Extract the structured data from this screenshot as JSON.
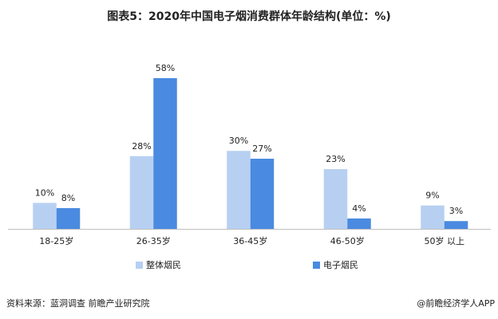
{
  "chart_data": {
    "type": "bar",
    "title": "图表5：2020年中国电子烟消费群体年龄结构(单位：%)",
    "categories": [
      "18-25岁",
      "26-35岁",
      "36-45岁",
      "46-50岁",
      "50岁 以上"
    ],
    "series": [
      {
        "name": "整体烟民",
        "color": "#b7d0f2",
        "values": [
          10,
          28,
          30,
          23,
          9
        ],
        "value_labels": [
          "10%",
          "28%",
          "30%",
          "23%",
          "9%"
        ]
      },
      {
        "name": "电子烟民",
        "color": "#4a8ae0",
        "values": [
          8,
          58,
          27,
          4,
          3
        ],
        "value_labels": [
          "8%",
          "58%",
          "27%",
          "4%",
          "3%"
        ]
      }
    ],
    "source": "资料来源：蓝洞调查 前瞻产业研究院",
    "credit": "@前瞻经济学人APP"
  }
}
